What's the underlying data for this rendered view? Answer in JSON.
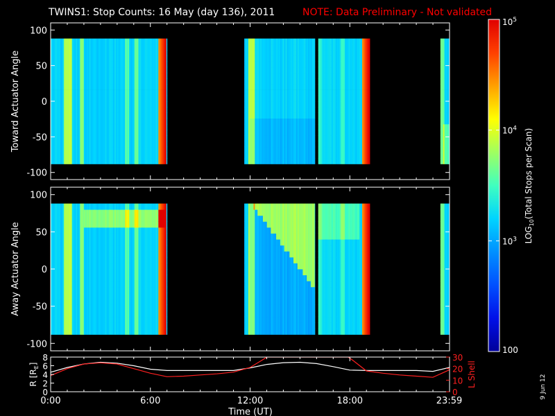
{
  "title": "TWINS1: Stop Counts: 16 May (day 136), 2011",
  "note": "NOTE: Data Preliminary - Not validated",
  "date_stamp": "9 Jun 12",
  "colors": {
    "background": "#000000",
    "axes": "#ffffff",
    "note": "#ff0000",
    "r_line": "#ffffff",
    "lshell_line": "#ff2020"
  },
  "colorbar": {
    "label_main": "LOG",
    "label_sub": "10",
    "label_rest": "(Total Stops per Scan)",
    "scale": "log",
    "range": [
      100,
      100000
    ],
    "ticks": [
      {
        "value": 100,
        "base": "100",
        "exp": ""
      },
      {
        "value": 1000,
        "base": "10",
        "exp": "3"
      },
      {
        "value": 10000,
        "base": "10",
        "exp": "4"
      },
      {
        "value": 100000,
        "base": "10",
        "exp": "5"
      }
    ],
    "colormap": [
      "#00009a",
      "#0010e8",
      "#0050ff",
      "#0090ff",
      "#00d4ff",
      "#40ffbf",
      "#a0ff60",
      "#ffff00",
      "#ffa000",
      "#ff4000",
      "#e00000"
    ]
  },
  "chart_data": [
    {
      "type": "heatmap",
      "ylabel": "Toward Actuator Angle",
      "ylim": [
        -110,
        110
      ],
      "yticks": [
        100,
        50,
        0,
        -50,
        -100
      ],
      "xlim": [
        0,
        24
      ],
      "xticks": [
        "0:00",
        "6:00",
        "12:00",
        "18:00",
        "23:59"
      ],
      "angle_range": [
        -88,
        88
      ],
      "data_blocks": [
        {
          "start_h": 0.0,
          "end_h": 7.0
        },
        {
          "start_h": 11.65,
          "end_h": 15.9
        },
        {
          "start_h": 16.1,
          "end_h": 19.2
        },
        {
          "start_h": 23.45,
          "end_h": 24.0
        }
      ]
    },
    {
      "type": "heatmap",
      "ylabel": "Away Actuator Angle",
      "ylim": [
        -110,
        110
      ],
      "yticks": [
        100,
        50,
        0,
        -50,
        -100
      ],
      "xlim": [
        0,
        24
      ],
      "xticks": [
        "0:00",
        "6:00",
        "12:00",
        "18:00",
        "23:59"
      ],
      "angle_range": [
        -88,
        88
      ],
      "data_blocks": [
        {
          "start_h": 0.0,
          "end_h": 7.0
        },
        {
          "start_h": 11.65,
          "end_h": 15.9
        },
        {
          "start_h": 16.1,
          "end_h": 19.2
        },
        {
          "start_h": 23.45,
          "end_h": 24.0
        }
      ]
    },
    {
      "type": "line",
      "xlabel": "Time (UT)",
      "xticks": [
        "0:00",
        "6:00",
        "12:00",
        "18:00",
        "23:59"
      ],
      "xlim": [
        0,
        24
      ],
      "ylabel_left_main": "R [R",
      "ylabel_left_sub": "E",
      "ylabel_left_end": "]",
      "ylabel_right": "L Shell",
      "ylim_left": [
        0,
        8
      ],
      "yticks_left": [
        8,
        6,
        4,
        2,
        0
      ],
      "ylim_right": [
        0,
        30
      ],
      "yticks_right": [
        30,
        20,
        10,
        0
      ],
      "series": [
        {
          "axis": "left",
          "x": [
            0,
            1,
            2,
            3,
            4,
            5,
            6,
            7,
            8,
            9,
            10,
            11,
            12,
            13,
            14,
            15,
            16,
            17,
            18,
            19,
            20,
            21,
            22,
            23,
            24
          ],
          "values": [
            4.5,
            5.6,
            6.4,
            6.8,
            6.6,
            6.0,
            5.2,
            4.9,
            4.9,
            4.9,
            4.9,
            4.9,
            5.5,
            6.3,
            6.7,
            6.8,
            6.5,
            5.8,
            5.0,
            4.9,
            4.9,
            4.9,
            4.9,
            4.7,
            5.6
          ]
        },
        {
          "axis": "right",
          "x": [
            0,
            1,
            2,
            3,
            4,
            5,
            6,
            7,
            8,
            9,
            10,
            11,
            12,
            12.8,
            13.0,
            17.9,
            18.2,
            19.0,
            20,
            21,
            22,
            23,
            24
          ],
          "values": [
            14,
            20,
            24,
            25,
            24,
            20,
            16,
            13,
            13.5,
            14.5,
            15.5,
            17,
            21,
            28,
            30,
            30,
            27,
            18,
            16,
            14.5,
            13.5,
            12.5,
            19
          ]
        }
      ]
    }
  ]
}
